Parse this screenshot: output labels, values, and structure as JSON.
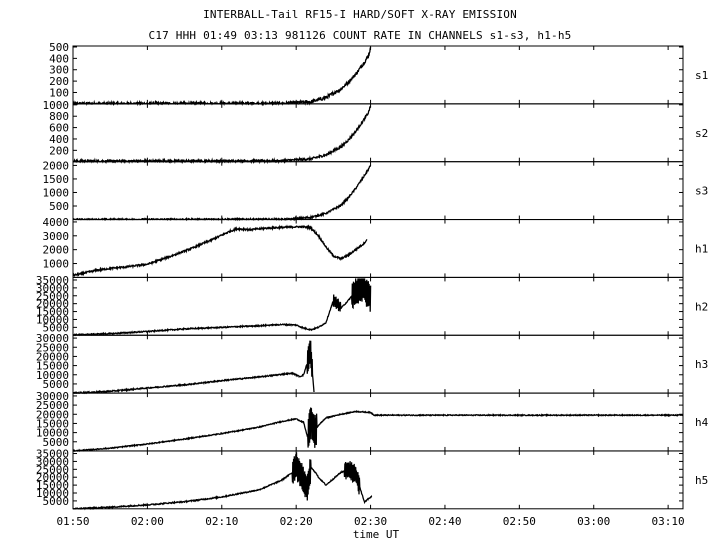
{
  "header": {
    "title": "INTERBALL-Tail RF15-I HARD/SOFT X-RAY EMISSION",
    "subtitle": "C17 HHH 01:49 03:13 981126  COUNT RATE IN CHANNELS s1-s3, h1-h5"
  },
  "chart_data": {
    "type": "line",
    "title": "INTERBALL-Tail RF15-I HARD/SOFT X-RAY EMISSION",
    "xlabel": "time UT",
    "x_unit": "minutes since 01:50 UT",
    "xlim": [
      0,
      82
    ],
    "x_tick_values": [
      0,
      10,
      20,
      30,
      40,
      50,
      60,
      70,
      80
    ],
    "x_tick_labels": [
      "01:50",
      "02:00",
      "02:10",
      "02:20",
      "02:30",
      "02:40",
      "02:50",
      "03:00",
      "03:10"
    ],
    "panels": [
      {
        "name": "s1",
        "ylim": [
          0,
          500
        ],
        "ticks": [
          100,
          200,
          300,
          400,
          500
        ],
        "tick_labels": [
          "100",
          "200",
          "300",
          "400",
          "500"
        ],
        "noise": 0.03,
        "end": 40,
        "points": [
          [
            0,
            0
          ],
          [
            28,
            2
          ],
          [
            32,
            18
          ],
          [
            34,
            55
          ],
          [
            36,
            130
          ],
          [
            37,
            190
          ],
          [
            38,
            260
          ],
          [
            39,
            350
          ],
          [
            39.7,
            420
          ],
          [
            40,
            490
          ]
        ]
      },
      {
        "name": "s2",
        "ylim": [
          0,
          1000
        ],
        "ticks": [
          200,
          400,
          600,
          800,
          1000
        ],
        "tick_labels": [
          "200",
          "400",
          "600",
          "800",
          "1000"
        ],
        "noise": 0.02,
        "end": 40,
        "points": [
          [
            0,
            10
          ],
          [
            28,
            15
          ],
          [
            32,
            50
          ],
          [
            34,
            120
          ],
          [
            36,
            260
          ],
          [
            37,
            380
          ],
          [
            38,
            530
          ],
          [
            39,
            720
          ],
          [
            39.7,
            860
          ],
          [
            40,
            980
          ]
        ]
      },
      {
        "name": "s3",
        "ylim": [
          0,
          2100
        ],
        "ticks": [
          500,
          1000,
          1500,
          2000
        ],
        "tick_labels": [
          "500",
          "1000",
          "1500",
          "2000"
        ],
        "noise": 0.015,
        "end": 40,
        "points": [
          [
            0,
            0
          ],
          [
            29,
            10
          ],
          [
            32,
            80
          ],
          [
            34,
            230
          ],
          [
            36,
            520
          ],
          [
            37,
            800
          ],
          [
            38,
            1150
          ],
          [
            39,
            1550
          ],
          [
            39.7,
            1850
          ],
          [
            40,
            2000
          ]
        ]
      },
      {
        "name": "h1",
        "ylim": [
          0,
          4100
        ],
        "ticks": [
          1000,
          2000,
          3000,
          4000
        ],
        "tick_labels": [
          "1000",
          "2000",
          "3000",
          "4000"
        ],
        "noise": 0.015,
        "end": 39.5,
        "points": [
          [
            0,
            150
          ],
          [
            1,
            250
          ],
          [
            3,
            500
          ],
          [
            5,
            650
          ],
          [
            7,
            750
          ],
          [
            10,
            950
          ],
          [
            13,
            1500
          ],
          [
            16,
            2100
          ],
          [
            19,
            2800
          ],
          [
            21,
            3300
          ],
          [
            22,
            3500
          ],
          [
            24,
            3450
          ],
          [
            26,
            3550
          ],
          [
            28,
            3600
          ],
          [
            30,
            3650
          ],
          [
            31,
            3650
          ],
          [
            32,
            3550
          ],
          [
            33,
            3000
          ],
          [
            34,
            2200
          ],
          [
            35,
            1550
          ],
          [
            36,
            1350
          ],
          [
            37,
            1600
          ],
          [
            38,
            2000
          ],
          [
            39,
            2400
          ],
          [
            39.5,
            2700
          ]
        ]
      },
      {
        "name": "h2",
        "ylim": [
          0,
          36000
        ],
        "ticks": [
          5000,
          10000,
          15000,
          20000,
          25000,
          30000,
          35000
        ],
        "tick_labels": [
          "5000",
          "10000",
          "15000",
          "20000",
          "25000",
          "30000",
          "35000"
        ],
        "noise": 0.01,
        "end": 40,
        "points": [
          [
            0,
            300
          ],
          [
            5,
            1000
          ],
          [
            10,
            2400
          ],
          [
            15,
            4000
          ],
          [
            20,
            5000
          ],
          [
            25,
            6000
          ],
          [
            28,
            6800
          ],
          [
            30,
            6500
          ],
          [
            31,
            4500
          ],
          [
            32,
            3500
          ],
          [
            33,
            5000
          ],
          [
            34,
            8000
          ],
          [
            35,
            22000
          ],
          [
            35.5,
            20000
          ],
          [
            36,
            17000
          ],
          [
            37,
            22000
          ],
          [
            38,
            28000
          ],
          [
            39,
            30000
          ],
          [
            39.5,
            27000
          ],
          [
            40,
            23000
          ]
        ],
        "bursts": [
          {
            "from": 35,
            "to": 36,
            "amp": 4000
          },
          {
            "from": 37.5,
            "to": 40,
            "amp": 9000
          }
        ]
      },
      {
        "name": "h3",
        "ylim": [
          0,
          31000
        ],
        "ticks": [
          5000,
          10000,
          15000,
          20000,
          25000,
          30000
        ],
        "tick_labels": [
          "5000",
          "10000",
          "15000",
          "20000",
          "25000",
          "30000"
        ],
        "noise": 0.01,
        "end": 32.4,
        "points": [
          [
            0,
            0
          ],
          [
            5,
            1000
          ],
          [
            10,
            2800
          ],
          [
            15,
            4500
          ],
          [
            20,
            6800
          ],
          [
            25,
            8800
          ],
          [
            28,
            10200
          ],
          [
            29.5,
            10800
          ],
          [
            30.5,
            9000
          ],
          [
            31,
            10000
          ],
          [
            31.6,
            18000
          ],
          [
            31.9,
            24000
          ],
          [
            32.1,
            15000
          ],
          [
            32.4,
            500
          ]
        ],
        "bursts": [
          {
            "from": 31.5,
            "to": 32.2,
            "amp": 7000
          }
        ]
      },
      {
        "name": "h4",
        "ylim": [
          0,
          31000
        ],
        "ticks": [
          5000,
          10000,
          15000,
          20000,
          25000,
          30000
        ],
        "tick_labels": [
          "5000",
          "10000",
          "15000",
          "20000",
          "25000",
          "30000"
        ],
        "noise": 0.008,
        "end": 82,
        "points": [
          [
            0,
            0
          ],
          [
            5,
            1500
          ],
          [
            10,
            3800
          ],
          [
            15,
            6500
          ],
          [
            20,
            9500
          ],
          [
            25,
            13000
          ],
          [
            28,
            16000
          ],
          [
            30,
            17500
          ],
          [
            31,
            15500
          ],
          [
            31.5,
            8000
          ],
          [
            32,
            17000
          ],
          [
            32.4,
            10000
          ],
          [
            33,
            14000
          ],
          [
            34,
            18000
          ],
          [
            36,
            20000
          ],
          [
            38,
            21500
          ],
          [
            40,
            21000
          ],
          [
            40.5,
            19500
          ],
          [
            82,
            19500
          ]
        ],
        "bursts": [
          {
            "from": 31.6,
            "to": 32.8,
            "amp": 9000
          }
        ]
      },
      {
        "name": "h5",
        "ylim": [
          0,
          36000
        ],
        "ticks": [
          5000,
          10000,
          15000,
          20000,
          25000,
          30000,
          35000
        ],
        "tick_labels": [
          "5000",
          "10000",
          "15000",
          "20000",
          "25000",
          "30000",
          "35000"
        ],
        "noise": 0.01,
        "end": 40.2,
        "points": [
          [
            0,
            0
          ],
          [
            5,
            1000
          ],
          [
            10,
            2500
          ],
          [
            15,
            4500
          ],
          [
            20,
            7500
          ],
          [
            25,
            12000
          ],
          [
            28,
            18000
          ],
          [
            29.5,
            23000
          ],
          [
            30,
            27000
          ],
          [
            31,
            18000
          ],
          [
            31.5,
            14000
          ],
          [
            32,
            26000
          ],
          [
            32.6,
            23000
          ],
          [
            33,
            20000
          ],
          [
            34,
            15000
          ],
          [
            35,
            19000
          ],
          [
            36,
            23000
          ],
          [
            37,
            25000
          ],
          [
            38,
            22000
          ],
          [
            38.8,
            10000
          ],
          [
            39.2,
            4000
          ],
          [
            39.6,
            6000
          ],
          [
            40.2,
            8000
          ]
        ],
        "bursts": [
          {
            "from": 29.5,
            "to": 32,
            "amp": 9000
          },
          {
            "from": 36.5,
            "to": 38.5,
            "amp": 6000
          }
        ]
      }
    ]
  }
}
